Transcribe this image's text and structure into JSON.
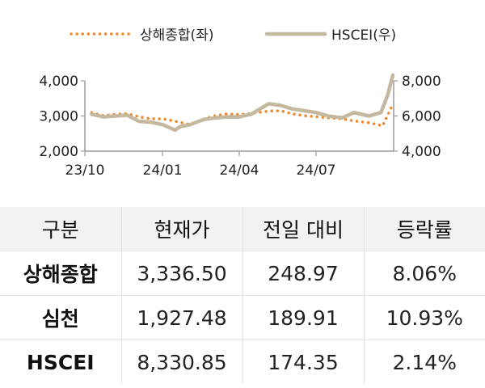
{
  "chart_data": {
    "type": "line",
    "x_tick_labels": [
      "23/10",
      "24/01",
      "24/04",
      "24/07"
    ],
    "y_left": {
      "ticks": [
        2000,
        3000,
        4000
      ],
      "tick_labels": [
        "2,000",
        "3,000",
        "4,000"
      ],
      "range": [
        2000,
        4000
      ]
    },
    "y_right": {
      "ticks": [
        4000,
        6000,
        8000
      ],
      "tick_labels": [
        "4,000",
        "6,000",
        "8,000"
      ],
      "range": [
        4000,
        8000
      ]
    },
    "series": [
      {
        "name": "상해종합(좌)",
        "axis": "left",
        "style": "dotted",
        "color": "#ee8a2e",
        "x": [
          "2023-10-09",
          "2023-10-23",
          "2023-11-06",
          "2023-11-20",
          "2023-12-04",
          "2023-12-18",
          "2024-01-02",
          "2024-01-16",
          "2024-02-02",
          "2024-02-19",
          "2024-03-04",
          "2024-03-18",
          "2024-04-01",
          "2024-04-15",
          "2024-05-06",
          "2024-05-20",
          "2024-06-03",
          "2024-06-17",
          "2024-07-01",
          "2024-07-15",
          "2024-08-01",
          "2024-08-15",
          "2024-09-02",
          "2024-09-18",
          "2024-09-30"
        ],
        "values": [
          3100,
          3010,
          3050,
          3070,
          2980,
          2920,
          2920,
          2850,
          2760,
          2920,
          3010,
          3060,
          3040,
          3070,
          3140,
          3150,
          3060,
          3010,
          2980,
          2950,
          2920,
          2860,
          2810,
          2720,
          3340
        ]
      },
      {
        "name": "HSCEI(우)",
        "axis": "right",
        "style": "solid",
        "color": "#c4b89f",
        "x": [
          "2023-10-09",
          "2023-10-23",
          "2023-11-06",
          "2023-11-20",
          "2023-12-04",
          "2023-12-18",
          "2024-01-02",
          "2024-01-16",
          "2024-01-22",
          "2024-02-02",
          "2024-02-19",
          "2024-03-04",
          "2024-03-18",
          "2024-04-01",
          "2024-04-15",
          "2024-05-06",
          "2024-05-20",
          "2024-06-03",
          "2024-06-17",
          "2024-07-01",
          "2024-07-15",
          "2024-08-01",
          "2024-08-15",
          "2024-09-02",
          "2024-09-16",
          "2024-09-24",
          "2024-09-30"
        ],
        "values": [
          6100,
          5950,
          6000,
          6050,
          5700,
          5650,
          5500,
          5200,
          5400,
          5500,
          5800,
          5900,
          5950,
          5950,
          6100,
          6700,
          6600,
          6400,
          6300,
          6200,
          6000,
          5900,
          6200,
          6000,
          6200,
          7200,
          8330
        ]
      }
    ]
  },
  "table": {
    "headers": [
      "구분",
      "현재가",
      "전일 대비",
      "등락률"
    ],
    "rows": [
      {
        "name": "상해종합",
        "price": "3,336.50",
        "change": "248.97",
        "pct": "8.06%"
      },
      {
        "name": "심천",
        "price": "1,927.48",
        "change": "189.91",
        "pct": "10.93%"
      },
      {
        "name": "HSCEI",
        "price": "8,330.85",
        "change": "174.35",
        "pct": "2.14%"
      }
    ]
  }
}
